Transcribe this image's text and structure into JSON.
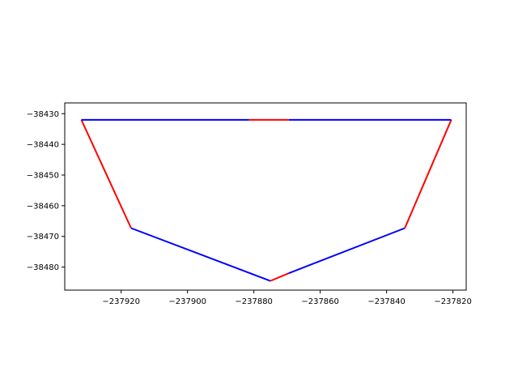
{
  "chart_data": {
    "type": "line",
    "title": "",
    "xlabel": "",
    "ylabel": "",
    "xlim": [
      -237937,
      -237816
    ],
    "ylim": [
      -38487.5,
      -38426.5
    ],
    "grid": false,
    "legend": "none",
    "x_ticks": [
      -237920,
      -237900,
      -237880,
      -237860,
      -237840,
      -237820
    ],
    "x_tick_labels": [
      "−237920",
      "−237900",
      "−237880",
      "−237860",
      "−237840",
      "−237820"
    ],
    "y_ticks": [
      -38430,
      -38440,
      -38450,
      -38460,
      -38470,
      -38480
    ],
    "y_tick_labels": [
      "−38430",
      "−38440",
      "−38450",
      "−38460",
      "−38470",
      "−38480"
    ],
    "series": [
      {
        "color": "#ff0000",
        "points": [
          [
            -237932,
            -38432
          ],
          [
            -237917,
            -38467.3
          ]
        ]
      },
      {
        "color": "#0000ff",
        "points": [
          [
            -237917,
            -38467.3
          ],
          [
            -237875,
            -38484.5
          ]
        ]
      },
      {
        "color": "#ff0000",
        "points": [
          [
            -237875,
            -38484.5
          ],
          [
            -237869.5,
            -38482
          ]
        ]
      },
      {
        "color": "#0000ff",
        "points": [
          [
            -237869.5,
            -38482
          ],
          [
            -237834.5,
            -38467.3
          ]
        ]
      },
      {
        "color": "#ff0000",
        "points": [
          [
            -237834.5,
            -38467.3
          ],
          [
            -237820.5,
            -38432
          ]
        ]
      },
      {
        "color": "#0000ff",
        "points": [
          [
            -237820.5,
            -38432
          ],
          [
            -237869.5,
            -38432
          ]
        ]
      },
      {
        "color": "#ff0000",
        "points": [
          [
            -237869.5,
            -38432
          ],
          [
            -237881.5,
            -38432
          ]
        ]
      },
      {
        "color": "#0000ff",
        "points": [
          [
            -237881.5,
            -38432
          ],
          [
            -237932,
            -38432
          ]
        ]
      }
    ]
  }
}
